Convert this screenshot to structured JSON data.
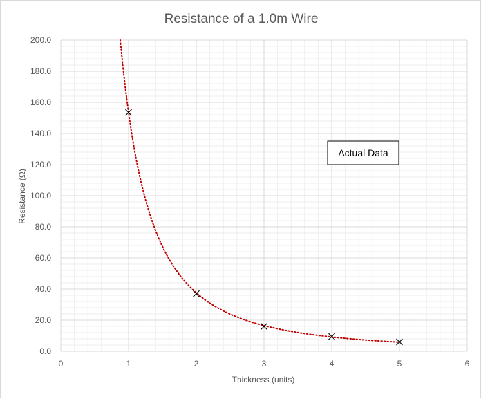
{
  "chart_data": {
    "type": "scatter",
    "title": "Resistance of a 1.0m Wire",
    "xlabel": "Thickness (units)",
    "ylabel": "Resistance (Ω)",
    "xlim": [
      0,
      6
    ],
    "ylim": [
      0,
      200
    ],
    "x_ticks": [
      0,
      1,
      2,
      3,
      4,
      5,
      6
    ],
    "y_ticks": [
      0,
      20,
      40,
      60,
      80,
      100,
      120,
      140,
      160,
      180,
      200
    ],
    "x_tick_labels": [
      "0",
      "1",
      "2",
      "3",
      "4",
      "5",
      "6"
    ],
    "y_tick_labels": [
      "0.0",
      "20.0",
      "40.0",
      "60.0",
      "80.0",
      "100.0",
      "120.0",
      "140.0",
      "160.0",
      "180.0",
      "200.0"
    ],
    "grid": true,
    "minor_grid": true,
    "series": [
      {
        "name": "Actual Data",
        "marker": "x",
        "color": "#000000",
        "x": [
          1,
          2,
          3,
          4,
          5
        ],
        "y": [
          153.5,
          37.0,
          16.0,
          9.5,
          6.0
        ]
      }
    ],
    "trendline": {
      "type": "power",
      "a": 153.5,
      "b": -2.03,
      "color": "#c00000",
      "style": "dotted"
    },
    "annotation": {
      "text": "Actual Data",
      "position": "right-middle"
    }
  }
}
